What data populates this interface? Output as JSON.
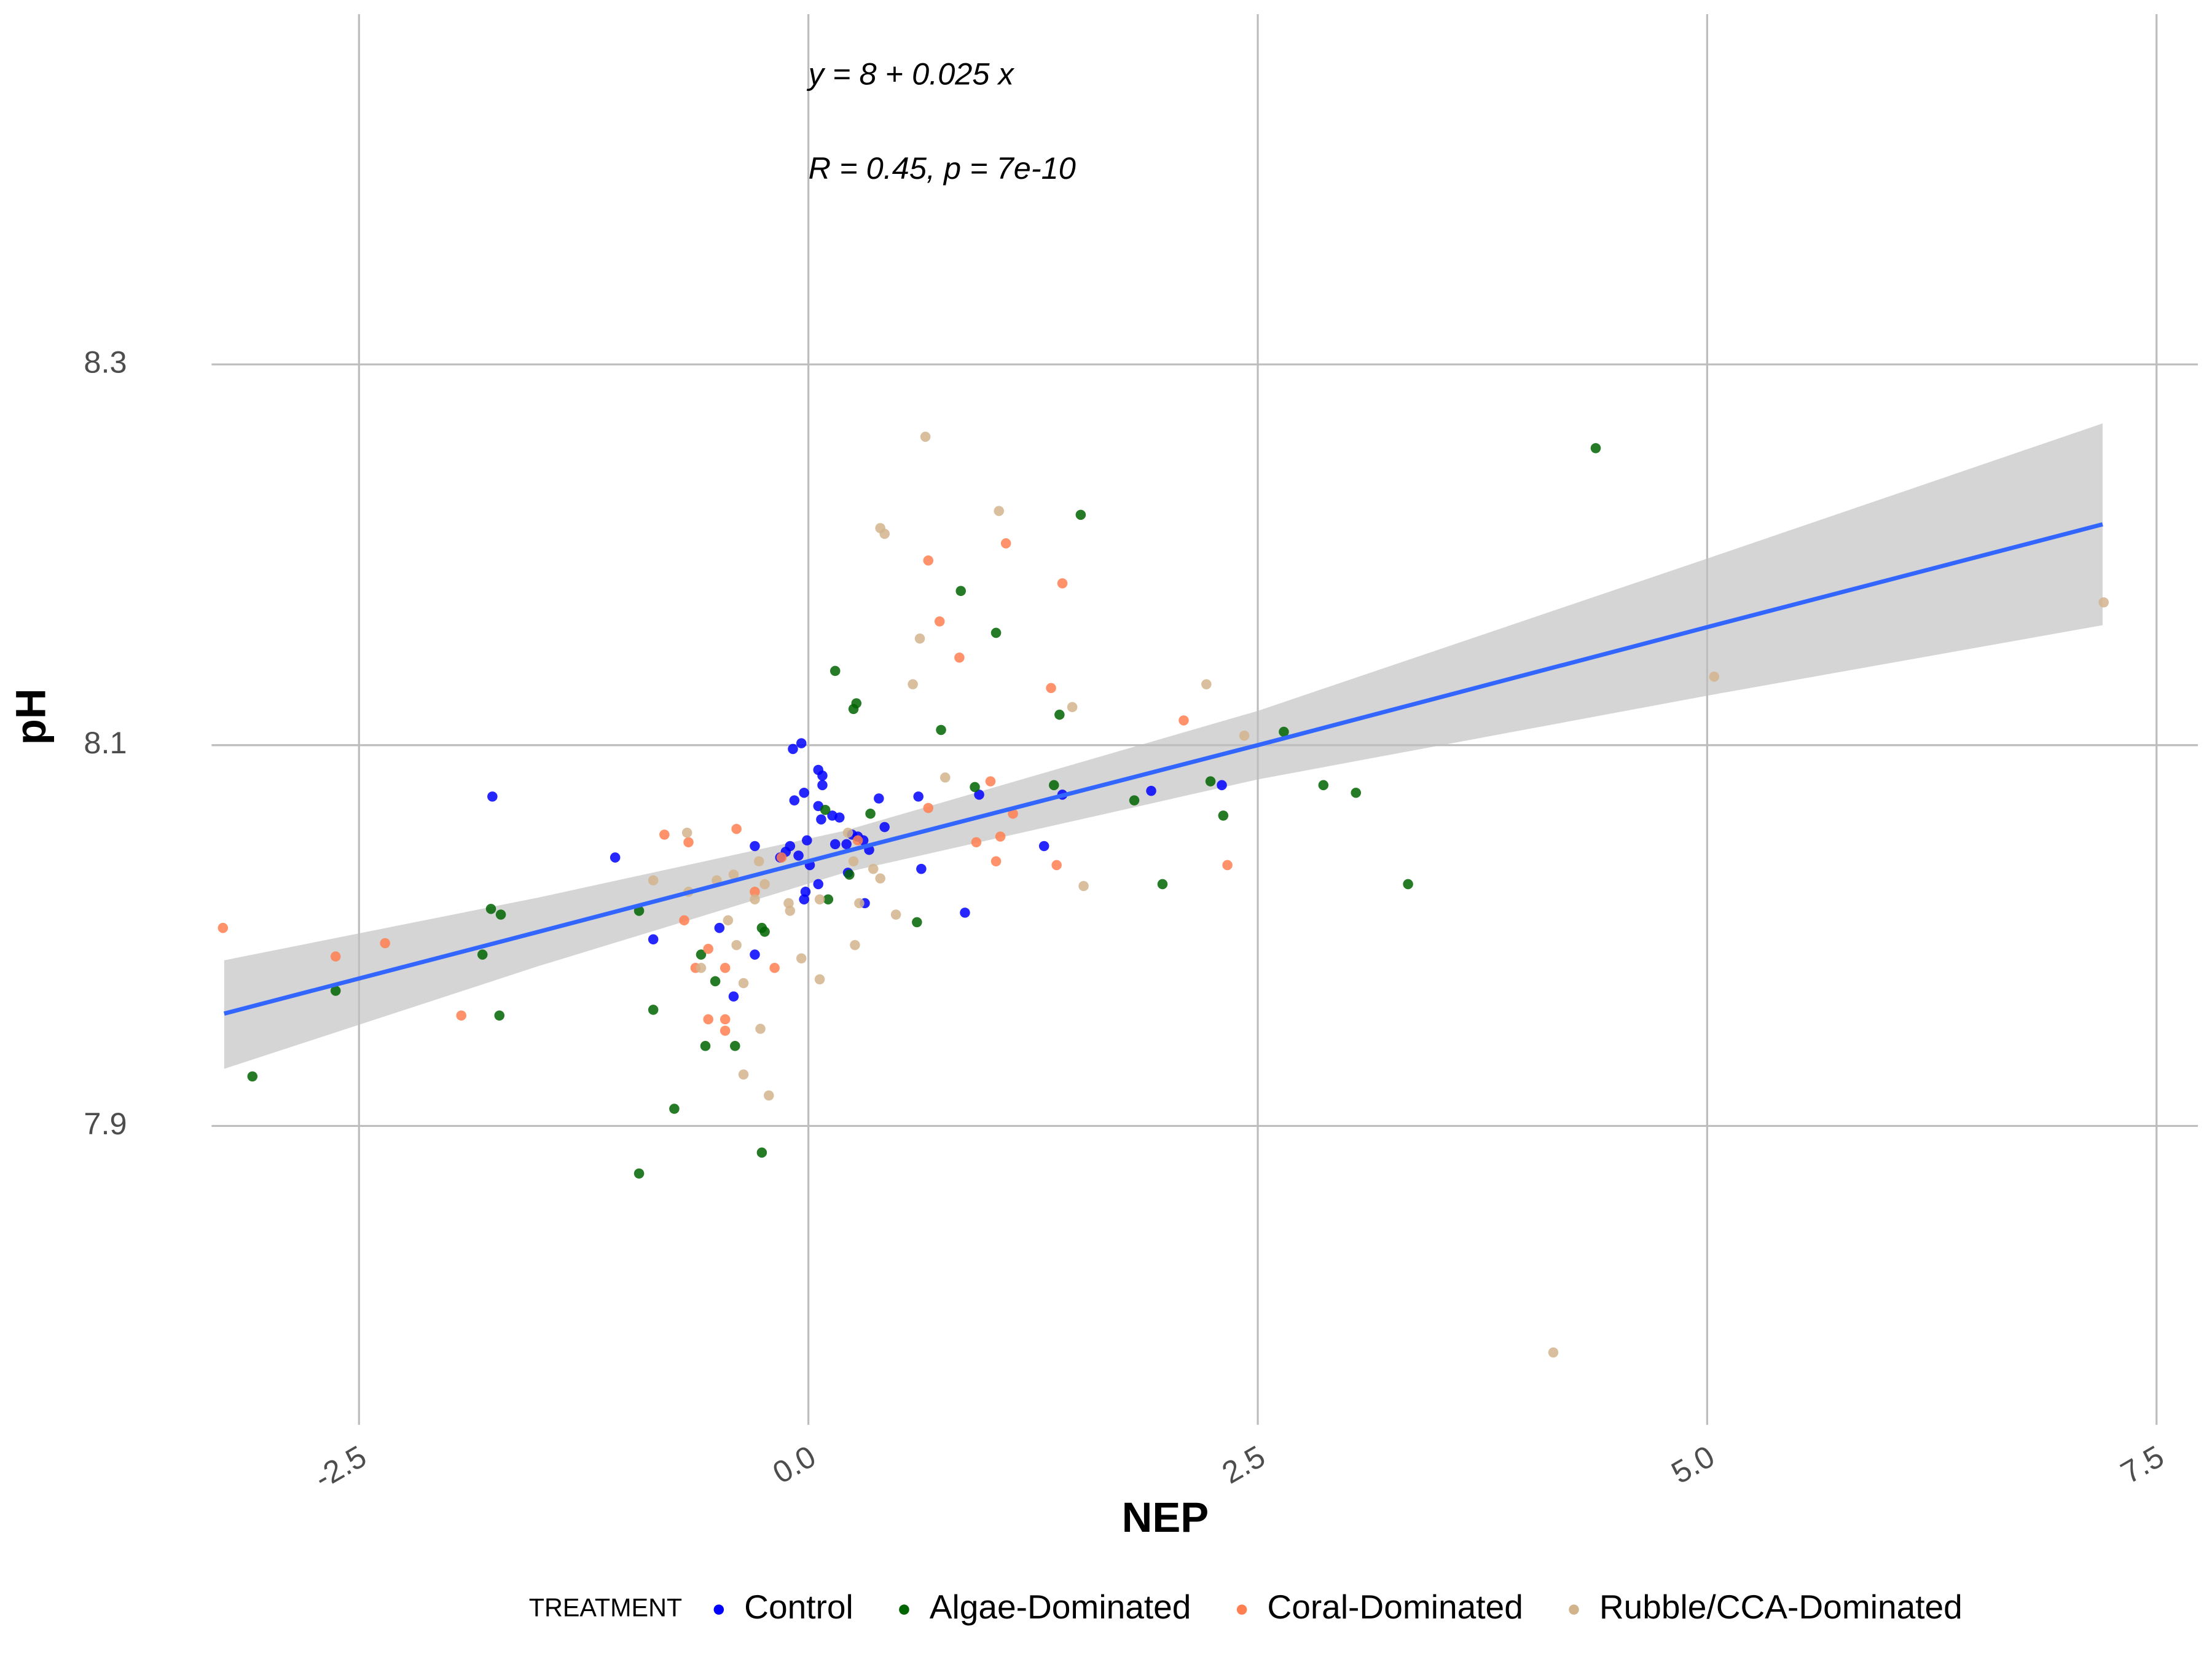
{
  "chart_data": {
    "type": "scatter",
    "xlabel": "NEP",
    "ylabel": "pH",
    "annotations": [
      "y = 8 + 0.025 x",
      "R = 0.45, p = 7e-10"
    ],
    "legend_title": "TREATMENT",
    "legend_position": "bottom",
    "grid": true,
    "xlim": [
      -3.32,
      7.73
    ],
    "ylim": [
      7.743,
      8.484
    ],
    "xticks": [
      -2.5,
      {
        "value": 0,
        "label": "0.0"
      },
      2.5,
      {
        "value": 5,
        "label": "5.0"
      },
      7.5
    ],
    "yticks": [
      7.9,
      8.1,
      8.3
    ],
    "fit": {
      "color": "#3366ff",
      "band_color": "#bfbfbf",
      "x": [
        -3.25,
        -1.5,
        0.2,
        2.5,
        5,
        7.2
      ],
      "values": [
        7.959,
        8.002,
        8.044,
        8.1,
        8.162,
        8.216
      ],
      "lower": [
        7.93,
        7.984,
        8.033,
        8.082,
        8.126,
        8.163
      ],
      "upper": [
        7.987,
        8.02,
        8.055,
        8.118,
        8.198,
        8.269
      ]
    },
    "series": [
      {
        "name": "Control",
        "color": "#0000ff",
        "x": [
          -1.758,
          -1.075,
          -0.863,
          -0.495,
          -0.416,
          -0.298,
          -0.298,
          -0.086,
          -0.039,
          -0.078,
          -0.024,
          -0.008,
          0.008,
          -0.024,
          -0.016,
          0.055,
          0.078,
          0.055,
          0.071,
          0.078,
          0.055,
          0.133,
          0.173,
          0.22,
          0.243,
          0.275,
          0.306,
          0.314,
          0.338,
          0.392,
          0.424,
          0.628,
          0.612,
          0.871,
          0.95,
          1.311,
          1.413,
          1.907,
          2.3,
          -0.102,
          -0.055,
          -0.126,
          -0.157,
          0.212,
          0.149
        ],
        "values": [
          8.073,
          8.041,
          7.998,
          8.004,
          7.968,
          8.047,
          7.99,
          8.098,
          8.101,
          8.071,
          8.075,
          8.05,
          8.037,
          8.019,
          8.023,
          8.087,
          8.079,
          8.068,
          8.061,
          8.084,
          8.027,
          8.063,
          8.062,
          8.033,
          8.053,
          8.052,
          8.05,
          8.017,
          8.045,
          8.072,
          8.057,
          8.035,
          8.073,
          8.012,
          8.074,
          8.047,
          8.074,
          8.076,
          8.079,
          8.047,
          8.042,
          8.044,
          8.041,
          8.048,
          8.048
        ]
      },
      {
        "name": "Algae-Dominated",
        "color": "#006400",
        "x": [
          -3.093,
          -2.63,
          -1.813,
          -1.766,
          -1.711,
          -1.719,
          -0.942,
          -0.942,
          -0.863,
          -0.746,
          -0.597,
          -0.573,
          -0.518,
          -0.408,
          -0.259,
          -0.243,
          -0.259,
          0.11,
          0.094,
          0.149,
          0.251,
          0.267,
          0.345,
          0.228,
          0.604,
          0.738,
          0.848,
          0.926,
          1.044,
          1.366,
          1.397,
          1.515,
          1.813,
          1.97,
          2.237,
          2.308,
          2.645,
          2.865,
          3.046,
          3.336,
          4.38
        ],
        "values": [
          7.926,
          7.971,
          7.99,
          8.014,
          8.011,
          7.958,
          7.875,
          8.013,
          7.961,
          7.909,
          7.99,
          7.942,
          7.976,
          7.942,
          8.004,
          8.002,
          7.886,
          8.019,
          8.066,
          8.139,
          8.119,
          8.122,
          8.064,
          8.032,
          8.007,
          8.108,
          8.181,
          8.078,
          8.159,
          8.079,
          8.116,
          8.221,
          8.071,
          8.027,
          8.081,
          8.063,
          8.107,
          8.079,
          8.075,
          8.027,
          8.256
        ]
      },
      {
        "name": "Coral-Dominated",
        "color": "#ff7f50",
        "x": [
          -3.257,
          -2.63,
          -2.355,
          -1.931,
          -0.801,
          -0.667,
          -0.691,
          -0.628,
          -0.557,
          -0.557,
          -0.463,
          -0.463,
          -0.463,
          -0.4,
          -0.298,
          -0.188,
          -0.149,
          0.275,
          0.667,
          0.667,
          0.73,
          0.84,
          1.013,
          0.934,
          1.044,
          1.068,
          1.099,
          1.138,
          1.35,
          1.381,
          1.413,
          2.088,
          2.331
        ],
        "values": [
          8.004,
          7.989,
          7.996,
          7.958,
          8.053,
          8.049,
          8.008,
          7.983,
          7.993,
          7.956,
          7.983,
          7.956,
          7.95,
          8.056,
          8.023,
          7.983,
          8.041,
          8.05,
          8.197,
          8.067,
          8.165,
          8.146,
          8.081,
          8.049,
          8.039,
          8.052,
          8.206,
          8.064,
          8.13,
          8.037,
          8.185,
          8.113,
          8.037
        ]
      },
      {
        "name": "Rubble/CCA-Dominated",
        "color": "#d2b48c",
        "x": [
          -0.863,
          -0.675,
          -0.667,
          -0.597,
          -0.51,
          -0.447,
          -0.416,
          -0.4,
          -0.361,
          -0.361,
          -0.298,
          -0.275,
          -0.267,
          -0.243,
          -0.22,
          -0.11,
          -0.102,
          -0.039,
          0.063,
          0.063,
          0.22,
          0.251,
          0.259,
          0.283,
          0.361,
          0.4,
          0.4,
          0.424,
          0.487,
          0.581,
          0.62,
          0.651,
          0.761,
          1.06,
          1.468,
          1.531,
          2.214,
          2.425,
          4.144,
          5.039,
          7.206
        ],
        "values": [
          8.029,
          8.054,
          8.023,
          7.983,
          8.029,
          8.008,
          8.032,
          7.995,
          7.975,
          7.927,
          8.019,
          8.039,
          7.951,
          8.027,
          7.916,
          8.017,
          8.013,
          7.988,
          8.019,
          7.977,
          8.054,
          8.039,
          7.995,
          8.017,
          8.035,
          8.03,
          8.214,
          8.211,
          8.011,
          8.132,
          8.156,
          8.262,
          8.083,
          8.223,
          8.12,
          8.026,
          8.132,
          8.105,
          7.781,
          8.136,
          8.175
        ]
      }
    ]
  }
}
